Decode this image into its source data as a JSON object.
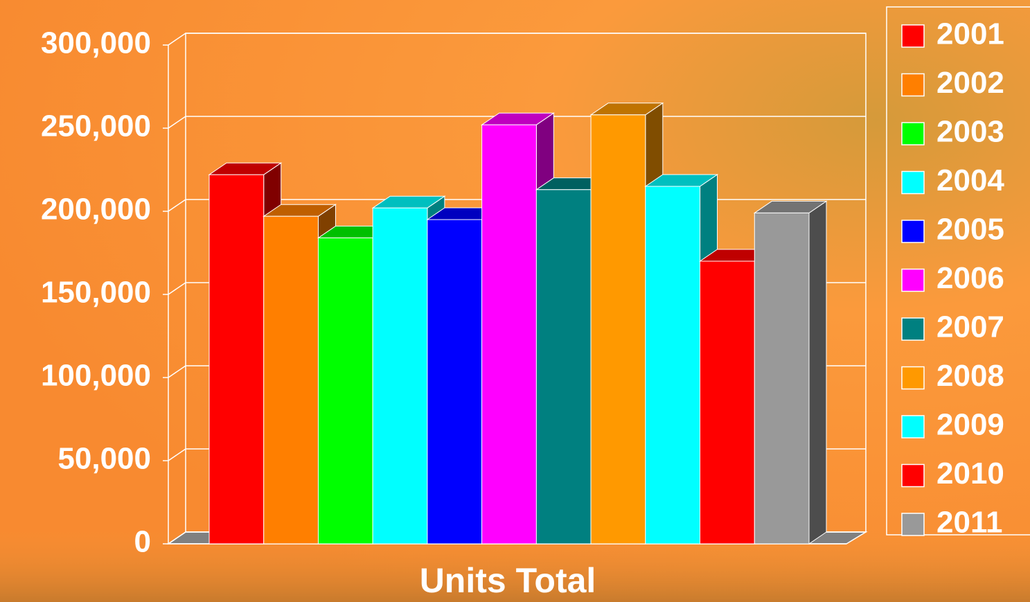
{
  "chart_data": {
    "type": "bar3d",
    "categories": [
      "Units Total"
    ],
    "series": [
      {
        "name": "2001",
        "color": "#ff0000",
        "values": [
          222000
        ]
      },
      {
        "name": "2002",
        "color": "#ff7f00",
        "values": [
          197000
        ]
      },
      {
        "name": "2003",
        "color": "#00ff00",
        "values": [
          184000
        ]
      },
      {
        "name": "2004",
        "color": "#00ffff",
        "values": [
          202000
        ]
      },
      {
        "name": "2005",
        "color": "#0000ff",
        "values": [
          195000
        ]
      },
      {
        "name": "2006",
        "color": "#ff00ff",
        "values": [
          252000
        ]
      },
      {
        "name": "2007",
        "color": "#008080",
        "values": [
          213000
        ]
      },
      {
        "name": "2008",
        "color": "#ff9900",
        "values": [
          258000
        ]
      },
      {
        "name": "2009",
        "color": "#00ffff",
        "values": [
          215000
        ]
      },
      {
        "name": "2010",
        "color": "#ff0000",
        "values": [
          170000
        ]
      },
      {
        "name": "2011",
        "color": "#999999",
        "values": [
          199000
        ]
      }
    ],
    "ylim": [
      0,
      300000
    ],
    "yticks": [
      0,
      {
        "value": 50000,
        "label": "50,000"
      },
      {
        "value": 100000,
        "label": "100,000"
      },
      {
        "value": 150000,
        "label": "150,000"
      },
      {
        "value": 200000,
        "label": "200,000"
      },
      {
        "value": 250000,
        "label": "250,000"
      },
      {
        "value": 300000,
        "label": "300,000"
      }
    ],
    "grid": true,
    "legend": "right"
  }
}
